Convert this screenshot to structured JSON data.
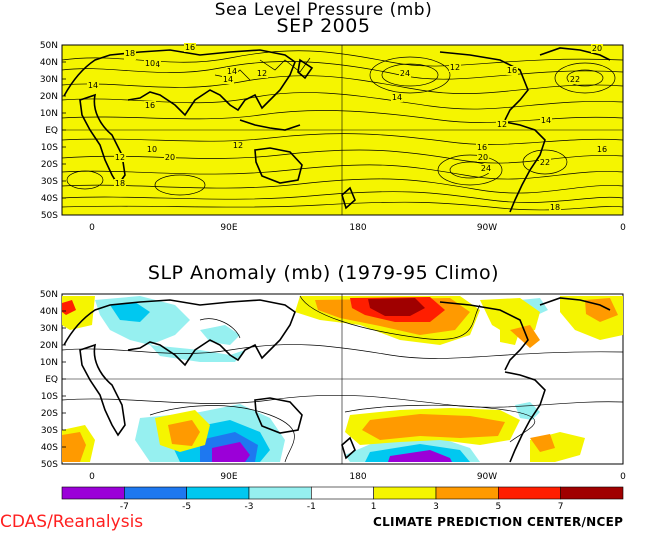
{
  "top_map": {
    "title_line1": "Sea Level Pressure (mb)",
    "title_line2": "SEP 2005",
    "fill_color": "#f5f500",
    "lat_labels": [
      "50N",
      "40N",
      "30N",
      "20N",
      "10N",
      "EQ",
      "10S",
      "20S",
      "30S",
      "40S",
      "50S"
    ],
    "lon_labels": [
      "0",
      "90E",
      "180",
      "90W",
      "0"
    ],
    "contour_labels": [
      "16",
      "14",
      "18",
      "10",
      "16",
      "14",
      "12",
      "14",
      "24",
      "12",
      "16",
      "20",
      "22",
      "14",
      "16",
      "12",
      "18",
      "10",
      "20",
      "12",
      "14",
      "16",
      "24",
      "22",
      "20",
      "18",
      "16",
      "14",
      "12"
    ]
  },
  "bottom_map": {
    "title": "SLP Anomaly (mb) (1979-95 Climo)",
    "lat_labels": [
      "50N",
      "40N",
      "30N",
      "20N",
      "10N",
      "EQ",
      "10S",
      "20S",
      "30S",
      "40S",
      "50S"
    ],
    "lon_labels": [
      "0",
      "90E",
      "180",
      "90W",
      "0"
    ]
  },
  "colorbar": {
    "colors": [
      "#9b00d8",
      "#1e78f0",
      "#00c8f0",
      "#96f0f0",
      "#ffffff",
      "#f5f500",
      "#ff9a00",
      "#ff1e00",
      "#a00000"
    ],
    "tick_labels": [
      "-7",
      "-5",
      "-3",
      "-1",
      "1",
      "3",
      "5",
      "7"
    ]
  },
  "footer": {
    "left": "CDAS/Reanalysis",
    "right": "CLIMATE PREDICTION CENTER/NCEP"
  }
}
